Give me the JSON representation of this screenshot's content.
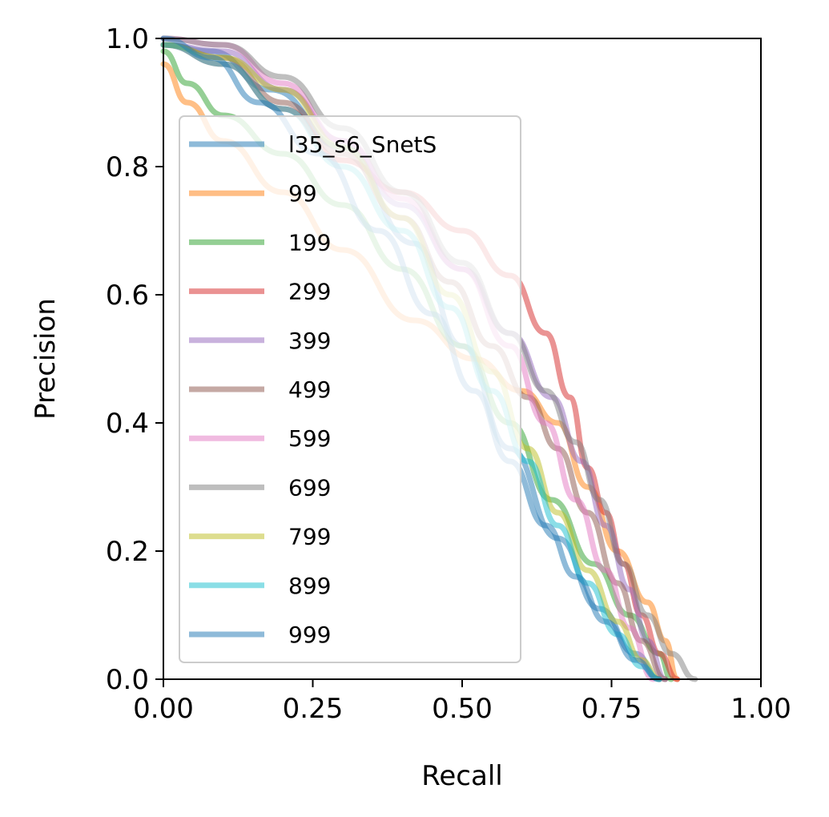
{
  "chart_data": {
    "type": "line",
    "title": "",
    "xlabel": "Recall",
    "ylabel": "Precision",
    "xlim": [
      0.0,
      1.0
    ],
    "ylim": [
      0.0,
      1.0
    ],
    "xticks": [
      "0.00",
      "0.25",
      "0.50",
      "0.75",
      "1.00"
    ],
    "yticks": [
      "0.0",
      "0.2",
      "0.4",
      "0.6",
      "0.8",
      "1.0"
    ],
    "grid": false,
    "legend_position": "upper-left",
    "series": [
      {
        "name": "l35_s6_SnetS",
        "color": "#1f77b4",
        "x": [
          0.0,
          0.08,
          0.18,
          0.3,
          0.42,
          0.5,
          0.58,
          0.66,
          0.73,
          0.79,
          0.83
        ],
        "y": [
          0.99,
          0.98,
          0.92,
          0.83,
          0.68,
          0.52,
          0.36,
          0.22,
          0.11,
          0.04,
          0.0
        ]
      },
      {
        "name": "99",
        "color": "#ff7f0e",
        "x": [
          0.0,
          0.04,
          0.1,
          0.2,
          0.3,
          0.42,
          0.52,
          0.6,
          0.66,
          0.71,
          0.76,
          0.81,
          0.84,
          0.86
        ],
        "y": [
          0.96,
          0.9,
          0.84,
          0.76,
          0.67,
          0.56,
          0.5,
          0.45,
          0.4,
          0.3,
          0.2,
          0.12,
          0.06,
          0.0
        ]
      },
      {
        "name": "199",
        "color": "#2ca02c",
        "x": [
          0.0,
          0.04,
          0.1,
          0.2,
          0.3,
          0.4,
          0.5,
          0.58,
          0.65,
          0.72,
          0.78,
          0.83,
          0.85
        ],
        "y": [
          0.98,
          0.93,
          0.88,
          0.82,
          0.74,
          0.64,
          0.52,
          0.4,
          0.28,
          0.18,
          0.1,
          0.04,
          0.0
        ]
      },
      {
        "name": "299",
        "color": "#d62728",
        "x": [
          0.0,
          0.1,
          0.2,
          0.3,
          0.4,
          0.5,
          0.58,
          0.64,
          0.68,
          0.71,
          0.74,
          0.77,
          0.8,
          0.83,
          0.86
        ],
        "y": [
          0.99,
          0.96,
          0.89,
          0.81,
          0.76,
          0.7,
          0.63,
          0.54,
          0.44,
          0.33,
          0.26,
          0.18,
          0.1,
          0.04,
          0.0
        ]
      },
      {
        "name": "399",
        "color": "#9467bd",
        "x": [
          0.0,
          0.1,
          0.2,
          0.3,
          0.4,
          0.5,
          0.58,
          0.65,
          0.7,
          0.74,
          0.78,
          0.81,
          0.84
        ],
        "y": [
          0.99,
          0.98,
          0.92,
          0.84,
          0.74,
          0.64,
          0.54,
          0.44,
          0.34,
          0.24,
          0.14,
          0.06,
          0.0
        ]
      },
      {
        "name": "499",
        "color": "#8c564b",
        "x": [
          0.0,
          0.1,
          0.2,
          0.3,
          0.4,
          0.48,
          0.55,
          0.61,
          0.66,
          0.71,
          0.76,
          0.8,
          0.84
        ],
        "y": [
          0.99,
          0.97,
          0.9,
          0.82,
          0.72,
          0.62,
          0.52,
          0.44,
          0.36,
          0.26,
          0.15,
          0.06,
          0.0
        ]
      },
      {
        "name": "599",
        "color": "#e377c2",
        "x": [
          0.0,
          0.1,
          0.2,
          0.3,
          0.4,
          0.5,
          0.58,
          0.64,
          0.69,
          0.74,
          0.78,
          0.82
        ],
        "y": [
          1.0,
          0.99,
          0.93,
          0.84,
          0.75,
          0.64,
          0.52,
          0.4,
          0.28,
          0.17,
          0.08,
          0.0
        ]
      },
      {
        "name": "699",
        "color": "#7f7f7f",
        "x": [
          0.0,
          0.1,
          0.2,
          0.3,
          0.4,
          0.5,
          0.58,
          0.64,
          0.69,
          0.73,
          0.77,
          0.81,
          0.85,
          0.89
        ],
        "y": [
          1.0,
          0.99,
          0.94,
          0.86,
          0.76,
          0.65,
          0.54,
          0.45,
          0.37,
          0.28,
          0.18,
          0.1,
          0.04,
          0.0
        ]
      },
      {
        "name": "799",
        "color": "#bcbd22",
        "x": [
          0.0,
          0.1,
          0.2,
          0.3,
          0.4,
          0.48,
          0.55,
          0.61,
          0.66,
          0.71,
          0.76,
          0.8,
          0.83
        ],
        "y": [
          0.99,
          0.97,
          0.92,
          0.83,
          0.72,
          0.6,
          0.48,
          0.36,
          0.26,
          0.17,
          0.09,
          0.03,
          0.0
        ]
      },
      {
        "name": "899",
        "color": "#17becf",
        "x": [
          0.0,
          0.1,
          0.2,
          0.3,
          0.4,
          0.48,
          0.55,
          0.61,
          0.66,
          0.71,
          0.76,
          0.8,
          0.83
        ],
        "y": [
          0.99,
          0.96,
          0.89,
          0.8,
          0.7,
          0.58,
          0.45,
          0.34,
          0.24,
          0.15,
          0.07,
          0.02,
          0.0
        ]
      },
      {
        "name": "999",
        "color": "#1f77b4",
        "x": [
          0.0,
          0.08,
          0.16,
          0.26,
          0.36,
          0.45,
          0.52,
          0.58,
          0.64,
          0.69,
          0.74,
          0.79,
          0.83
        ],
        "y": [
          1.0,
          0.97,
          0.9,
          0.82,
          0.7,
          0.57,
          0.45,
          0.34,
          0.24,
          0.16,
          0.09,
          0.03,
          0.0
        ]
      }
    ]
  }
}
